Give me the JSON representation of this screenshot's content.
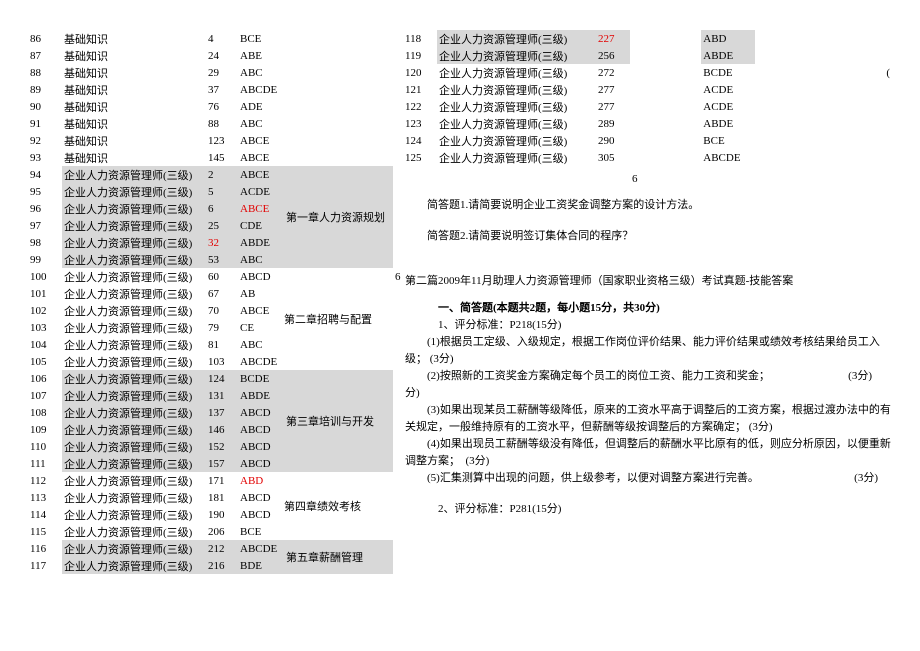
{
  "colors": {
    "highlight": "#d8d8d8",
    "red": "#e20000",
    "bg": "#ffffff",
    "text": "#000000"
  },
  "chapter_labels": {
    "ch1": "第一章人力资源规划",
    "ch2": "第二章招聘与配置",
    "ch3": "第三章培训与开发",
    "ch4": "第四章绩效考核",
    "ch5": "第五章薪酬管理"
  },
  "left_rows": [
    {
      "n": "86",
      "cat": "基础知识",
      "cat_hl": false,
      "idx": "4",
      "idx_hl": false,
      "ans": "BCE",
      "ans_hl": false
    },
    {
      "n": "87",
      "cat": "基础知识",
      "cat_hl": false,
      "idx": "24",
      "idx_hl": false,
      "ans": "ABE",
      "ans_hl": false
    },
    {
      "n": "88",
      "cat": "基础知识",
      "cat_hl": false,
      "idx": "29",
      "idx_hl": false,
      "ans": "ABC",
      "ans_hl": false
    },
    {
      "n": "89",
      "cat": "基础知识",
      "cat_hl": false,
      "idx": "37",
      "idx_hl": false,
      "ans": "ABCDE",
      "ans_hl": false
    },
    {
      "n": "90",
      "cat": "基础知识",
      "cat_hl": false,
      "idx": "76",
      "idx_hl": false,
      "ans": "ADE",
      "ans_hl": false
    },
    {
      "n": "91",
      "cat": "基础知识",
      "cat_hl": false,
      "idx": "88",
      "idx_hl": false,
      "ans": "ABC",
      "ans_hl": false
    },
    {
      "n": "92",
      "cat": "基础知识",
      "cat_hl": false,
      "idx": "123",
      "idx_hl": false,
      "ans": "ABCE",
      "ans_hl": false
    },
    {
      "n": "93",
      "cat": "基础知识",
      "cat_hl": false,
      "idx": "145",
      "idx_hl": false,
      "ans": "ABCE",
      "ans_hl": false
    },
    {
      "n": "94",
      "cat": "企业人力资源管理师(三级)",
      "cat_hl": true,
      "idx": "2",
      "idx_hl": false,
      "ans": "ABCE",
      "ans_hl": true,
      "chap": "ch1",
      "chap_rowspan": 6
    },
    {
      "n": "95",
      "cat": "企业人力资源管理师(三级)",
      "cat_hl": true,
      "idx": "5",
      "idx_hl": false,
      "ans": "ACDE",
      "ans_hl": true
    },
    {
      "n": "96",
      "cat": "企业人力资源管理师(三级)",
      "cat_hl": true,
      "idx": "6",
      "idx_hl": false,
      "ans": "ABCE",
      "ans_hl": true,
      "ans_red": true
    },
    {
      "n": "97",
      "cat": "企业人力资源管理师(三级)",
      "cat_hl": true,
      "idx": "25",
      "idx_hl": false,
      "ans": "CDE",
      "ans_hl": true
    },
    {
      "n": "98",
      "cat": "企业人力资源管理师(三级)",
      "cat_hl": true,
      "idx": "32",
      "idx_hl": false,
      "idx_red": true,
      "ans": "ABDE",
      "ans_hl": true
    },
    {
      "n": "99",
      "cat": "企业人力资源管理师(三级)",
      "cat_hl": true,
      "idx": "53",
      "idx_hl": false,
      "ans": "ABC",
      "ans_hl": true
    },
    {
      "n": "100",
      "cat": "企业人力资源管理师(三级)",
      "cat_hl": false,
      "idx": "60",
      "idx_hl": false,
      "ans": "ABCD",
      "ans_hl": false,
      "chap": "ch2",
      "chap_rowspan": 6,
      "chap_hl": false,
      "extra": "6"
    },
    {
      "n": "101",
      "cat": "企业人力资源管理师(三级)",
      "cat_hl": false,
      "idx": "67",
      "idx_hl": false,
      "ans": "AB",
      "ans_hl": false
    },
    {
      "n": "102",
      "cat": "企业人力资源管理师(三级)",
      "cat_hl": false,
      "idx": "70",
      "idx_hl": false,
      "ans": "ABCE",
      "ans_hl": false
    },
    {
      "n": "103",
      "cat": "企业人力资源管理师(三级)",
      "cat_hl": false,
      "idx": "79",
      "idx_hl": false,
      "ans": "CE",
      "ans_hl": false
    },
    {
      "n": "104",
      "cat": "企业人力资源管理师(三级)",
      "cat_hl": false,
      "idx": "81",
      "idx_hl": false,
      "ans": "ABC",
      "ans_hl": false
    },
    {
      "n": "105",
      "cat": "企业人力资源管理师(三级)",
      "cat_hl": false,
      "idx": "103",
      "idx_hl": false,
      "ans": "ABCDE",
      "ans_hl": false
    },
    {
      "n": "106",
      "cat": "企业人力资源管理师(三级)",
      "cat_hl": true,
      "idx": "124",
      "idx_hl": false,
      "ans": "BCDE",
      "ans_hl": true,
      "chap": "ch3",
      "chap_rowspan": 6
    },
    {
      "n": "107",
      "cat": "企业人力资源管理师(三级)",
      "cat_hl": true,
      "idx": "131",
      "idx_hl": false,
      "ans": "ABDE",
      "ans_hl": true
    },
    {
      "n": "108",
      "cat": "企业人力资源管理师(三级)",
      "cat_hl": true,
      "idx": "137",
      "idx_hl": false,
      "ans": "ABCD",
      "ans_hl": true
    },
    {
      "n": "109",
      "cat": "企业人力资源管理师(三级)",
      "cat_hl": true,
      "idx": "146",
      "idx_hl": false,
      "ans": "ABCD",
      "ans_hl": true
    },
    {
      "n": "110",
      "cat": "企业人力资源管理师(三级)",
      "cat_hl": true,
      "idx": "152",
      "idx_hl": false,
      "ans": "ABCD",
      "ans_hl": true
    },
    {
      "n": "111",
      "cat": "企业人力资源管理师(三级)",
      "cat_hl": true,
      "idx": "157",
      "idx_hl": false,
      "ans": "ABCD",
      "ans_hl": true
    },
    {
      "n": "112",
      "cat": "企业人力资源管理师(三级)",
      "cat_hl": false,
      "idx": "171",
      "idx_hl": false,
      "ans": "ABD",
      "ans_hl": false,
      "ans_red": true,
      "chap": "ch4",
      "chap_rowspan": 4,
      "chap_hl": false
    },
    {
      "n": "113",
      "cat": "企业人力资源管理师(三级)",
      "cat_hl": false,
      "idx": "181",
      "idx_hl": false,
      "ans": "ABCD",
      "ans_hl": false
    },
    {
      "n": "114",
      "cat": "企业人力资源管理师(三级)",
      "cat_hl": false,
      "idx": "190",
      "idx_hl": false,
      "ans": "ABCD",
      "ans_hl": false
    },
    {
      "n": "115",
      "cat": "企业人力资源管理师(三级)",
      "cat_hl": false,
      "idx": "206",
      "idx_hl": false,
      "ans": "BCE",
      "ans_hl": false
    },
    {
      "n": "116",
      "cat": "企业人力资源管理师(三级)",
      "cat_hl": true,
      "idx": "212",
      "idx_hl": false,
      "ans": "ABCDE",
      "ans_hl": true,
      "chap": "ch5",
      "chap_rowspan": 2
    },
    {
      "n": "117",
      "cat": "企业人力资源管理师(三级)",
      "cat_hl": true,
      "idx": "216",
      "idx_hl": false,
      "ans": "BDE",
      "ans_hl": true
    }
  ],
  "right_rows": [
    {
      "n": "118",
      "cat": "企业人力资源管理师(三级)",
      "cat_hl": true,
      "idx": "227",
      "idx_red": true,
      "ans": "ABD",
      "ans_hl": true
    },
    {
      "n": "119",
      "cat": "企业人力资源管理师(三级)",
      "cat_hl": true,
      "idx": "256",
      "ans": "ABDE",
      "ans_hl": true
    },
    {
      "n": "120",
      "cat": "企业人力资源管理师(三级)",
      "cat_hl": false,
      "idx": "272",
      "ans": "BCDE",
      "ans_hl": false,
      "tail": "("
    },
    {
      "n": "121",
      "cat": "企业人力资源管理师(三级)",
      "cat_hl": false,
      "idx": "277",
      "ans": "ACDE",
      "ans_hl": false
    },
    {
      "n": "122",
      "cat": "企业人力资源管理师(三级)",
      "cat_hl": false,
      "idx": "277",
      "ans": "ACDE",
      "ans_hl": false
    },
    {
      "n": "123",
      "cat": "企业人力资源管理师(三级)",
      "cat_hl": false,
      "idx": "289",
      "ans": "ABDE",
      "ans_hl": false
    },
    {
      "n": "124",
      "cat": "企业人力资源管理师(三级)",
      "cat_hl": false,
      "idx": "290",
      "ans": "BCE",
      "ans_hl": false
    },
    {
      "n": "125",
      "cat": "企业人力资源管理师(三级)",
      "cat_hl": false,
      "idx": "305",
      "ans": "ABCDE",
      "ans_hl": false
    }
  ],
  "right_extra_six": "6",
  "qa": {
    "q1": "简答题1.请简要说明企业工资奖金调整方案的设计方法。",
    "q2": "简答题2.请简要说明签订集体合同的程序？"
  },
  "section2_title": "第二篇2009年11月助理人力资源管理师（国家职业资格三级）考试真题-技能答案",
  "heading_1": "一、简答题(本题共2题，每小题15分，共30分)",
  "std1": "1、评分标准：P218(15分)",
  "p1": "(1)根据员工定级、入级规定，根据工作岗位评价结果、能力评价结果或绩效考核结果给员工入级； (3分)",
  "p2a": "(2)按照新的工资奖金方案确定每个员工的岗位工资、能力工资和奖金；",
  "p2b": "(3分)",
  "p3": "(3)如果出现某员工薪酬等级降低，原来的工资水平高于调整后的工资方案，根据过渡办法中的有关规定，一般维持原有的工资水平，但薪酬等级按调整后的方案确定； (3分)",
  "p4": "(4)如果出现员工薪酬等级没有降低，但调整后的薪酬水平比原有的低，则应分析原因，以便重新调整方案；  (3分)",
  "p5a": "(5)汇集测算中出现的问题，供上级参考，以便对调整方案进行完善。",
  "p5b": "(3分)",
  "std2": "2、评分标准：P281(15分)"
}
